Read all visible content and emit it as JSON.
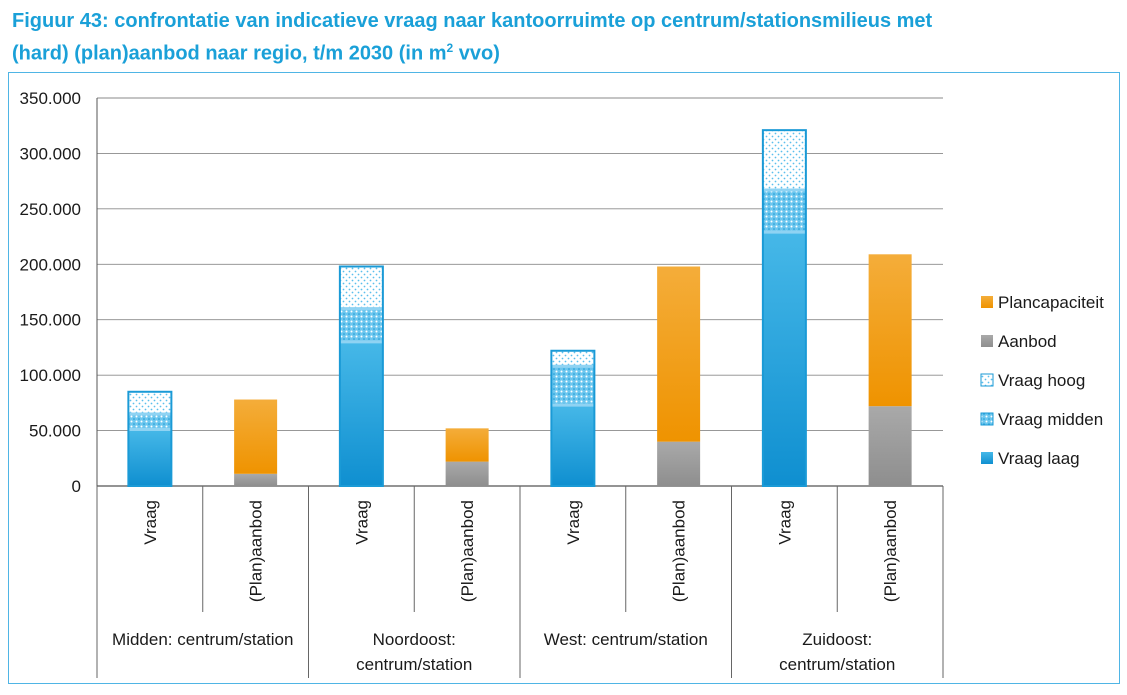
{
  "title_line1": "Figuur 43: confrontatie van indicatieve vraag naar kantoorruimte op centrum/stationsmilieus met",
  "title_line2_pre": "(hard) (plan)aanbod naar regio, t/m 2030 (in m",
  "title_sup": "2",
  "title_line2_post": " vvo)",
  "chart_data": {
    "type": "bar",
    "stacked": true,
    "ylim": [
      0,
      350000
    ],
    "ytick_labels": [
      "0",
      "50.000",
      "100.000",
      "150.000",
      "200.000",
      "250.000",
      "300.000",
      "350.000"
    ],
    "grid": true,
    "legend_position": "right",
    "groups": [
      {
        "label_lines": [
          "Midden: centrum/station"
        ]
      },
      {
        "label_lines": [
          "Noordoost:",
          "centrum/station"
        ]
      },
      {
        "label_lines": [
          "West: centrum/station"
        ]
      },
      {
        "label_lines": [
          "Zuidoost:",
          "centrum/station"
        ]
      }
    ],
    "categories": [
      "Vraag",
      "(Plan)aanbod",
      "Vraag",
      "(Plan)aanbod",
      "Vraag",
      "(Plan)aanbod",
      "Vraag",
      "(Plan)aanbod"
    ],
    "series": [
      {
        "name": "Vraag laag",
        "color": "#1a9ad6",
        "pattern": "solid",
        "values": [
          51000,
          0,
          130000,
          0,
          73000,
          0,
          229000,
          0
        ]
      },
      {
        "name": "Vraag midden",
        "color": "#1a9ad6",
        "pattern": "dense",
        "values": [
          14000,
          0,
          30000,
          0,
          35000,
          0,
          38000,
          0
        ]
      },
      {
        "name": "Vraag hoog",
        "color": "#1a9ad6",
        "pattern": "light",
        "values": [
          20000,
          0,
          38000,
          0,
          14000,
          0,
          54000,
          0
        ]
      },
      {
        "name": "Aanbod",
        "color": "#9d9d9d",
        "pattern": "solid",
        "values": [
          0,
          11000,
          0,
          22000,
          0,
          40000,
          0,
          72000
        ]
      },
      {
        "name": "Plancapaciteit",
        "color": "#f39c12",
        "pattern": "solid",
        "values": [
          0,
          67000,
          0,
          30000,
          0,
          158000,
          0,
          137000
        ]
      }
    ],
    "legend_order": [
      "Plancapaciteit",
      "Aanbod",
      "Vraag hoog",
      "Vraag midden",
      "Vraag laag"
    ]
  }
}
